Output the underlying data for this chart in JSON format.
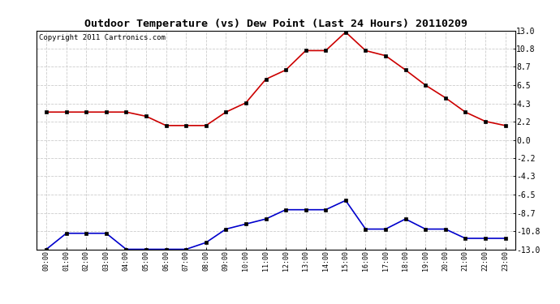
{
  "title": "Outdoor Temperature (vs) Dew Point (Last 24 Hours) 20110209",
  "copyright": "Copyright 2011 Cartronics.com",
  "x_labels": [
    "00:00",
    "01:00",
    "02:00",
    "03:00",
    "04:00",
    "05:00",
    "06:00",
    "07:00",
    "08:00",
    "09:00",
    "10:00",
    "11:00",
    "12:00",
    "13:00",
    "14:00",
    "15:00",
    "16:00",
    "17:00",
    "18:00",
    "19:00",
    "20:00",
    "21:00",
    "22:00",
    "23:00"
  ],
  "temp_data": [
    3.3,
    3.3,
    3.3,
    3.3,
    3.3,
    2.8,
    1.7,
    1.7,
    1.7,
    3.3,
    4.4,
    7.2,
    8.3,
    10.6,
    10.6,
    12.8,
    10.6,
    10.0,
    8.3,
    6.5,
    5.0,
    3.3,
    2.2,
    1.7
  ],
  "dew_data": [
    -13.0,
    -11.1,
    -11.1,
    -11.1,
    -13.0,
    -13.0,
    -13.0,
    -13.0,
    -12.2,
    -10.6,
    -10.0,
    -9.4,
    -8.3,
    -8.3,
    -8.3,
    -7.2,
    -10.6,
    -10.6,
    -9.4,
    -10.6,
    -10.6,
    -11.7,
    -11.7,
    -11.7
  ],
  "ylim": [
    -13.0,
    13.0
  ],
  "yticks": [
    -13.0,
    -10.8,
    -8.7,
    -6.5,
    -4.3,
    -2.2,
    0.0,
    2.2,
    4.3,
    6.5,
    8.7,
    10.8,
    13.0
  ],
  "ytick_labels": [
    "-13.0",
    "-10.8",
    "-8.7",
    "-6.5",
    "-4.3",
    "-2.2",
    "0.0",
    "2.2",
    "4.3",
    "6.5",
    "8.7",
    "10.8",
    "13.0"
  ],
  "temp_color": "#cc0000",
  "dew_color": "#0000cc",
  "bg_color": "#ffffff",
  "plot_bg_color": "#ffffff",
  "grid_color": "#cccccc",
  "title_fontsize": 9.5,
  "copyright_fontsize": 6.5,
  "tick_fontsize": 7,
  "x_tick_fontsize": 6
}
